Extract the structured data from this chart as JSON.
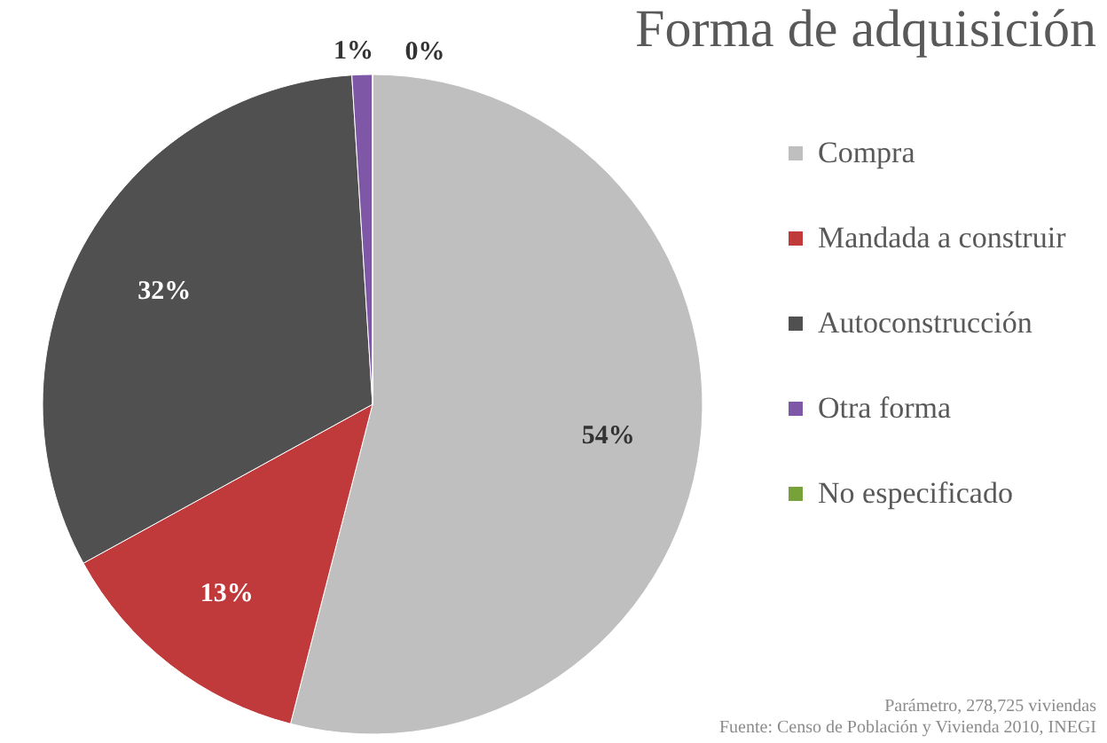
{
  "chart_data": {
    "type": "pie",
    "title": "Forma de adquisición",
    "categories": [
      "Compra",
      "Mandada a construir",
      "Autoconstrucción",
      "Otra forma",
      "No especificado"
    ],
    "values": [
      54,
      13,
      32,
      1,
      0
    ],
    "colors": [
      "#bfbfbf",
      "#c0393b",
      "#505050",
      "#7e57a6",
      "#77a23a"
    ],
    "value_labels": [
      "54%",
      "13%",
      "32%",
      "1%",
      "0%"
    ],
    "legend": "right",
    "annotations": [
      "Parámetro, 278,725 viviendas",
      "Fuente: Censo de Población y Vivienda 2010, INEGI"
    ]
  }
}
